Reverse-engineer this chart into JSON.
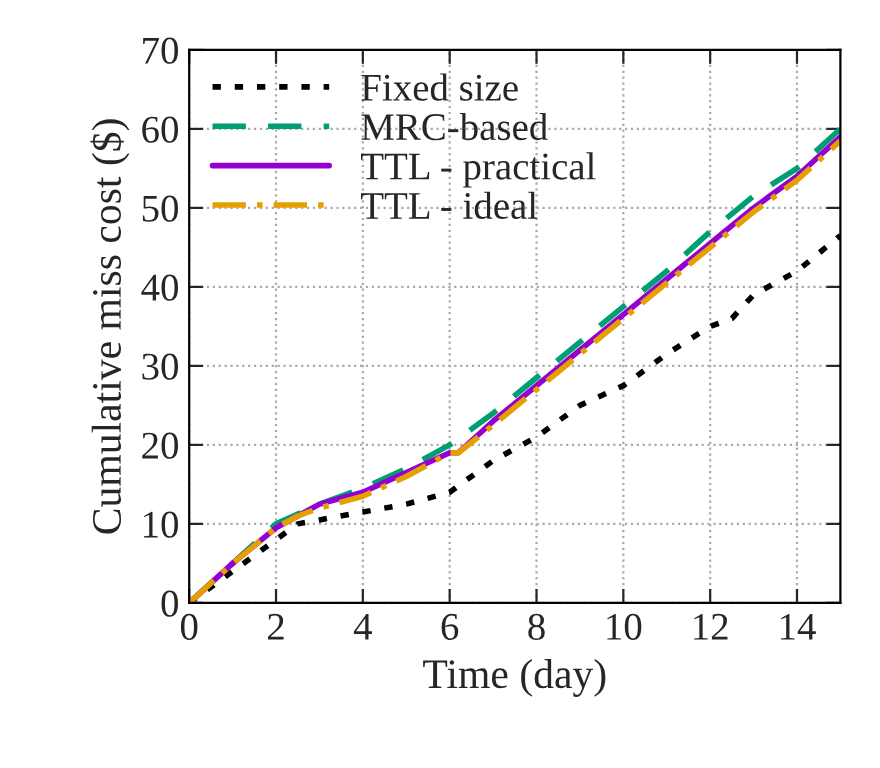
{
  "chart_data": {
    "type": "line",
    "xlabel": "Time (day)",
    "ylabel": "Cumulative miss cost ($)",
    "xlim": [
      0,
      15
    ],
    "xticks": [
      0,
      2,
      4,
      6,
      8,
      10,
      12,
      14
    ],
    "ylim": [
      0,
      70
    ],
    "yticks": [
      0,
      10,
      20,
      30,
      40,
      50,
      60,
      70
    ],
    "grid": true,
    "legend": "top left",
    "marker": "none",
    "series": [
      {
        "name": "Fixed size",
        "color": "#000000",
        "line_style": "dotted",
        "x": [
          0,
          1,
          2,
          2.5,
          3,
          4,
          5,
          6,
          7,
          8,
          9,
          10,
          11,
          12,
          12.5,
          13,
          14,
          15
        ],
        "values": [
          0,
          4,
          8,
          10,
          10.5,
          11.5,
          12.5,
          14,
          18,
          21,
          25,
          27.5,
          31.5,
          35,
          36,
          39,
          42,
          46.5
        ]
      },
      {
        "name": "MRC-based",
        "color": "#009e73",
        "line_style": "dashed",
        "x": [
          0,
          1,
          2,
          3,
          4,
          5,
          6,
          7,
          8,
          9,
          10,
          11,
          12,
          13,
          14,
          15
        ],
        "values": [
          0,
          5,
          10,
          12.5,
          14.5,
          17,
          20,
          24,
          28.5,
          33,
          37.5,
          42,
          47,
          51.5,
          55,
          60
        ]
      },
      {
        "name": "TTL - practical",
        "color": "#9400d3",
        "line_style": "solid",
        "x": [
          0,
          1,
          2,
          2.5,
          3,
          4,
          5,
          6,
          6.2,
          7,
          8,
          9,
          10,
          11,
          12,
          13,
          14,
          15
        ],
        "values": [
          0,
          5,
          9.5,
          11,
          12.5,
          14,
          16.5,
          19,
          19,
          23,
          27.5,
          32,
          36.5,
          41,
          45.5,
          50,
          54,
          59
        ]
      },
      {
        "name": "TTL - ideal",
        "color": "#e69f00",
        "line_style": "dashdot",
        "x": [
          0,
          1,
          2,
          2.5,
          3,
          4,
          5,
          6,
          6.2,
          7,
          8,
          9,
          10,
          11,
          12,
          13,
          14,
          15
        ],
        "values": [
          0,
          5,
          9.5,
          11,
          12,
          13.5,
          16,
          19,
          19,
          22.5,
          27,
          31.5,
          36,
          40.5,
          45,
          49.5,
          53.5,
          58.5
        ]
      }
    ]
  }
}
